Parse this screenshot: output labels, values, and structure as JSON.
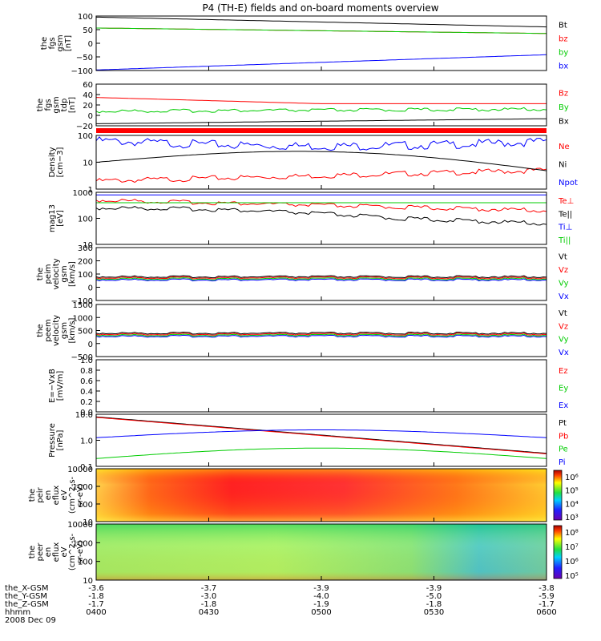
{
  "title": "P4 (TH-E) fields and on-board moments overview",
  "time_axis": {
    "ticks": [
      "0400",
      "0430",
      "0500",
      "0530",
      "0600"
    ],
    "rows": [
      {
        "label": "the_X-GSM",
        "values": [
          "-3.6",
          "-3.7",
          "-3.9",
          "-3.9",
          "-3.8"
        ]
      },
      {
        "label": "the_Y-GSM",
        "values": [
          "-1.8",
          "-3.0",
          "-4.0",
          "-5.0",
          "-5.9"
        ]
      },
      {
        "label": "the_Z-GSM",
        "values": [
          "-1.7",
          "-1.8",
          "-1.9",
          "-1.8",
          "-1.7"
        ]
      },
      {
        "label": "hhmm",
        "values": [
          "0400",
          "0430",
          "0500",
          "0530",
          "0600"
        ]
      }
    ],
    "date": "2008 Dec 09"
  },
  "colors": {
    "black": "#000000",
    "red": "#ff0000",
    "green": "#00cc00",
    "blue": "#0000ff"
  },
  "chart_data": [
    {
      "type": "line",
      "ylabel_lines": [
        "the",
        "fgs",
        "gsm",
        "[nT]"
      ],
      "ylim": [
        -100,
        100
      ],
      "ticks": [
        "100",
        "50",
        "0",
        "−50",
        "−100"
      ],
      "series": [
        {
          "name": "Bt",
          "color": "black"
        },
        {
          "name": "bz",
          "color": "red"
        },
        {
          "name": "by",
          "color": "green"
        },
        {
          "name": "bx",
          "color": "blue"
        }
      ]
    },
    {
      "type": "line",
      "ylabel_lines": [
        "the",
        "fgs",
        "gsm",
        "tdp",
        "[nT]"
      ],
      "ylim": [
        -30,
        60
      ],
      "ticks": [
        "60",
        "40",
        "20",
        "0",
        "−20"
      ],
      "series": [
        {
          "name": "Bz",
          "color": "red"
        },
        {
          "name": "By",
          "color": "green"
        },
        {
          "name": "Bx",
          "color": "black"
        }
      ]
    },
    {
      "type": "line",
      "ylabel_lines": [
        "Density",
        "[cm−3]"
      ],
      "scale": "log",
      "ylim": [
        1,
        150
      ],
      "ticks": [
        "100",
        "10",
        "1"
      ],
      "series": [
        {
          "name": "Ne",
          "color": "red"
        },
        {
          "name": "Ni",
          "color": "black"
        },
        {
          "name": "Npot",
          "color": "blue"
        }
      ]
    },
    {
      "type": "line",
      "ylabel_lines": [
        "mag13",
        "[eV]"
      ],
      "scale": "log",
      "ylim": [
        10,
        1000
      ],
      "ticks": [
        "1000",
        "100",
        "10"
      ],
      "series": [
        {
          "name": "Te⊥",
          "color": "red"
        },
        {
          "name": "Te||",
          "color": "black"
        },
        {
          "name": "Ti⊥",
          "color": "blue"
        },
        {
          "name": "Ti||",
          "color": "green"
        }
      ]
    },
    {
      "type": "line",
      "ylabel_lines": [
        "the",
        "peim",
        "velocity",
        "gsm",
        "[km/s]"
      ],
      "ylim": [
        -150,
        300
      ],
      "ticks": [
        "300",
        "200",
        "100",
        "0",
        "−100"
      ],
      "series": [
        {
          "name": "Vt",
          "color": "black"
        },
        {
          "name": "Vz",
          "color": "red"
        },
        {
          "name": "Vy",
          "color": "green"
        },
        {
          "name": "Vx",
          "color": "blue"
        }
      ]
    },
    {
      "type": "line",
      "ylabel_lines": [
        "the",
        "peem",
        "velocity",
        "gsm",
        "[km/s]"
      ],
      "ylim": [
        -600,
        1500
      ],
      "ticks": [
        "1500",
        "1000",
        "500",
        "0",
        "−500"
      ],
      "series": [
        {
          "name": "Vt",
          "color": "black"
        },
        {
          "name": "Vz",
          "color": "red"
        },
        {
          "name": "Vy",
          "color": "green"
        },
        {
          "name": "Vx",
          "color": "blue"
        }
      ]
    },
    {
      "type": "line",
      "ylabel_lines": [
        "E=−VxB",
        "[mV/m]"
      ],
      "ylim": [
        0,
        1
      ],
      "ticks": [
        "1.0",
        "0.8",
        "0.6",
        "0.4",
        "0.2",
        "0.0"
      ],
      "series": [
        {
          "name": "Ez",
          "color": "red"
        },
        {
          "name": "Ey",
          "color": "green"
        },
        {
          "name": "Ex",
          "color": "blue"
        }
      ]
    },
    {
      "type": "line",
      "ylabel_lines": [
        "Pressure",
        "[nPa]"
      ],
      "scale": "log",
      "ylim": [
        0.07,
        20
      ],
      "ticks": [
        "10.0",
        "1.0",
        "0.1"
      ],
      "series": [
        {
          "name": "Pt",
          "color": "black"
        },
        {
          "name": "Pb",
          "color": "red"
        },
        {
          "name": "Pe",
          "color": "green"
        },
        {
          "name": "Pi",
          "color": "blue"
        }
      ]
    },
    {
      "type": "heatmap",
      "ylabel_lines": [
        "the",
        "peir",
        "en",
        "eflux",
        "eV",
        "(cm^2-s-",
        "sr-eV)"
      ],
      "ticks": [
        "10000",
        "1000",
        "100",
        "10"
      ],
      "colorbar_ticks": [
        "10⁶",
        "10⁵",
        "10⁴",
        "10³"
      ]
    },
    {
      "type": "heatmap",
      "ylabel_lines": [
        "the",
        "peer",
        "en",
        "eflux",
        "eV",
        "(cm^2-s-",
        "sr-eV)"
      ],
      "ticks": [
        "10000",
        "1000",
        "100",
        "10"
      ],
      "colorbar_ticks": [
        "10⁸",
        "10⁷",
        "10⁶",
        "10⁵"
      ]
    }
  ]
}
